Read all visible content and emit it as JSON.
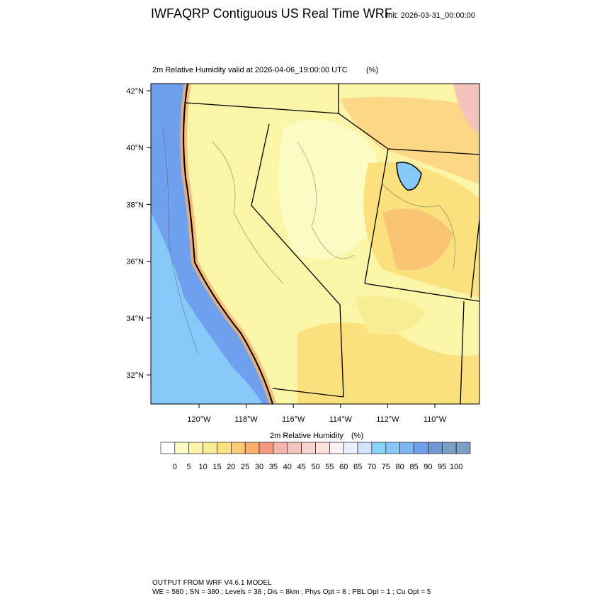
{
  "header": {
    "title": "IWFAQRP Contiguous US Real Time WRF",
    "init": "Init: 2026-03-31_00:00:00"
  },
  "map": {
    "subtitle": "2m Relative Humidity valid at 2026-04-06_19:00:00 UTC",
    "units": "(%)",
    "lat_labels": [
      "42°N",
      "40°N",
      "38°N",
      "36°N",
      "34°N",
      "32°N"
    ],
    "lon_labels": [
      "120°W",
      "118°W",
      "116°W",
      "114°W",
      "112°W",
      "110°W"
    ]
  },
  "colorbar": {
    "title": "2m Relative Humidity",
    "units": "(%)",
    "levels": [
      0,
      5,
      10,
      15,
      20,
      25,
      30,
      35,
      40,
      45,
      50,
      55,
      60,
      65,
      70,
      75,
      80,
      85,
      90,
      95,
      100
    ],
    "colors": [
      "#ffffff",
      "#fdfbc4",
      "#fbf5a8",
      "#f9ed94",
      "#fbe07e",
      "#fcca76",
      "#f9b06e",
      "#f7977e",
      "#f3b5ad",
      "#f3c4bc",
      "#f6d3cb",
      "#fbe3db",
      "#fdf0f3",
      "#eaeefd",
      "#d2e4fb",
      "#8ad4f8",
      "#88c8f8",
      "#7fb6f2",
      "#6fa0f0",
      "#7396d6",
      "#7ba0c8"
    ]
  },
  "footer": {
    "line1": "OUTPUT FROM WRF V4.6.1 MODEL",
    "line2": "WE = 580 ; SN = 380 ; Levels = 38 ; Dis = 8km ; Phys Opt = 8 ; PBL Opt = 1 ; Cu Opt = 5"
  }
}
